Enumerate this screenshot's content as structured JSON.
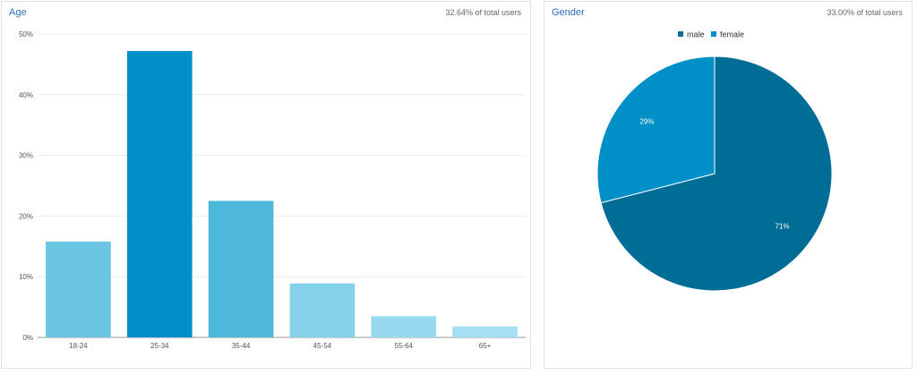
{
  "age_panel": {
    "title": "Age",
    "stat": "32.64% of total users"
  },
  "gender_panel": {
    "title": "Gender",
    "stat": "33.00% of total users"
  },
  "chart_data": [
    {
      "type": "bar",
      "title": "Age",
      "categories": [
        "18-24",
        "25-34",
        "35-44",
        "45-54",
        "55-64",
        "65+"
      ],
      "values": [
        15.8,
        47.2,
        22.5,
        8.9,
        3.5,
        1.8
      ],
      "colors": [
        "#6ac6e3",
        "#0090c8",
        "#4db8dc",
        "#84d1ea",
        "#97d9ef",
        "#a6dff2"
      ],
      "yticks": [
        "0%",
        "10%",
        "20%",
        "30%",
        "40%",
        "50%"
      ],
      "ylim": [
        0,
        50
      ],
      "grid": true
    },
    {
      "type": "pie",
      "title": "Gender",
      "labels": [
        "male",
        "female"
      ],
      "values": [
        71,
        29
      ],
      "value_labels": [
        "71%",
        "29%"
      ],
      "colors": [
        "#006d97",
        "#0090c8"
      ],
      "legend": "top"
    }
  ]
}
